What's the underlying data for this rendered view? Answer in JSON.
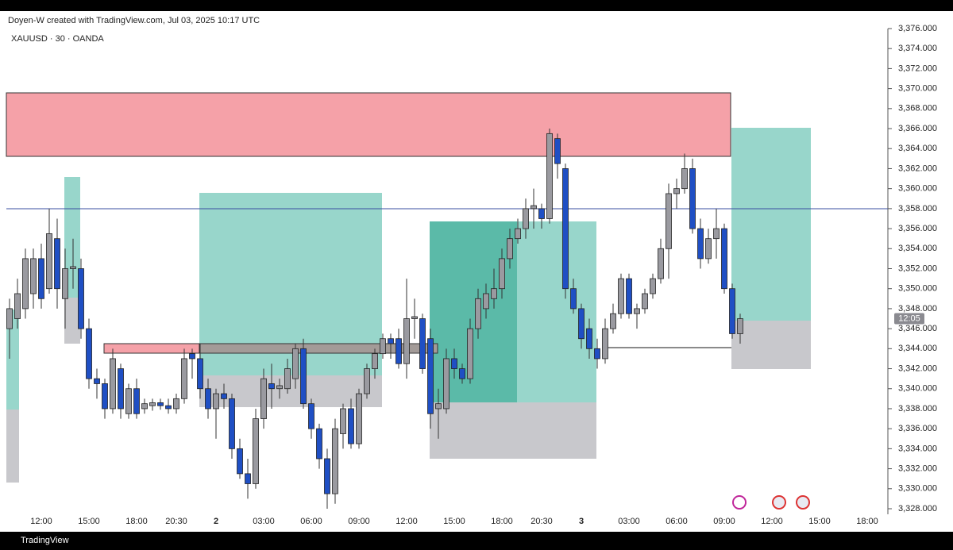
{
  "chart_data": {
    "type": "candlestick",
    "title": "Doyen-W created with TradingView.com, Jul 03, 2025 10:17 UTC",
    "subtitle": "XAUUSD · 30 · OANDA",
    "brand": "TradingView",
    "price_label": "12:05",
    "up_color": "#9a9aa0",
    "down_color": "#1f4fc4",
    "open": [
      3346,
      3347,
      3348,
      3349.5,
      3353,
      3350,
      3355,
      3349,
      3352,
      3352,
      3346,
      3341,
      3340.5,
      3338,
      3342,
      3337.5,
      3340,
      3338,
      3338.3,
      3338.6,
      3338.3,
      3338,
      3339,
      3343.5,
      3343,
      3340,
      3338,
      3339.5,
      3339,
      3334,
      3331.5,
      3330.5,
      3337,
      3340.5,
      3340,
      3340,
      3341,
      3344,
      3338.5,
      3336,
      3333,
      3329.5,
      3335.5,
      3338,
      3334.5,
      3339.5,
      3342,
      3343.5,
      3345,
      3345,
      3342.5,
      3347,
      3347,
      3345,
      3338,
      3338,
      3343,
      3342,
      3341,
      3346,
      3348,
      3349,
      3350,
      3353,
      3355,
      3356,
      3358,
      3358,
      3357,
      3365,
      3362,
      3350,
      3348,
      3346,
      3344,
      3343,
      3346,
      3347.5,
      3351,
      3347.5,
      3348,
      3349.5,
      3351,
      3354,
      3359.5,
      3360,
      3362,
      3356,
      3353,
      3355,
      3356,
      3350,
      3345.5
    ],
    "high": [
      3349,
      3351,
      3354,
      3354,
      3354.5,
      3358,
      3357,
      3354,
      3355,
      3353,
      3347,
      3342,
      3341,
      3344,
      3342.5,
      3340.5,
      3341,
      3339,
      3339,
      3339,
      3339,
      3339.5,
      3344,
      3344,
      3344.5,
      3341,
      3340,
      3340.5,
      3339.5,
      3335,
      3333,
      3338,
      3342,
      3342.5,
      3341,
      3343,
      3344.5,
      3345,
      3339,
      3336.5,
      3334,
      3337,
      3338.5,
      3339,
      3340,
      3342.5,
      3344,
      3345.5,
      3345.5,
      3346,
      3351,
      3349,
      3347.5,
      3346,
      3340,
      3344,
      3344,
      3342.5,
      3347,
      3350,
      3350.5,
      3352,
      3354,
      3356,
      3357,
      3359,
      3360,
      3358.5,
      3366,
      3365.5,
      3362.5,
      3351,
      3348.5,
      3347,
      3345,
      3347,
      3348.5,
      3351.5,
      3351.5,
      3348.5,
      3350,
      3351.5,
      3355,
      3360.5,
      3361,
      3363.5,
      3363,
      3357,
      3356,
      3358,
      3356.5,
      3350.5,
      3347.5
    ],
    "low": [
      3343,
      3346,
      3347,
      3348,
      3348,
      3349.5,
      3348,
      3346,
      3350,
      3345,
      3340,
      3339,
      3337,
      3337.5,
      3337,
      3337,
      3337,
      3337.5,
      3337.8,
      3337.9,
      3337.5,
      3337.5,
      3338.5,
      3341,
      3339,
      3337,
      3335,
      3338,
      3333,
      3331,
      3329,
      3330,
      3336,
      3338,
      3339,
      3339.5,
      3340,
      3338,
      3335,
      3332,
      3328,
      3328.5,
      3334,
      3334,
      3334,
      3339,
      3341,
      3343,
      3343,
      3342,
      3341,
      3345,
      3341.5,
      3336,
      3335,
      3337.5,
      3341,
      3340.5,
      3340.5,
      3345,
      3347,
      3348,
      3349,
      3352,
      3354.5,
      3355,
      3356,
      3356,
      3356.5,
      3361,
      3349,
      3347.5,
      3344,
      3343,
      3342,
      3342.5,
      3345.5,
      3347,
      3347,
      3346,
      3347.5,
      3349,
      3350.5,
      3351,
      3358,
      3359.5,
      3355.5,
      3352,
      3352.5,
      3353,
      3349.5,
      3345,
      3344.5
    ],
    "close": [
      3348,
      3349.5,
      3353,
      3353,
      3349,
      3355.5,
      3350,
      3352,
      3352.2,
      3346,
      3341,
      3340.5,
      3338,
      3343,
      3338,
      3340,
      3337.5,
      3338.5,
      3338.6,
      3338.3,
      3338,
      3339,
      3343,
      3343,
      3340,
      3338,
      3339.5,
      3339,
      3334,
      3331.5,
      3330.5,
      3337,
      3341,
      3340,
      3340.3,
      3342,
      3344,
      3338.5,
      3336,
      3333,
      3329.5,
      3336,
      3338,
      3334.5,
      3339.5,
      3342,
      3343.5,
      3345,
      3344.5,
      3342.5,
      3347,
      3347.2,
      3342,
      3337.5,
      3338.5,
      3343,
      3342,
      3341,
      3346,
      3349,
      3349.5,
      3350,
      3353,
      3355,
      3356,
      3358,
      3358.3,
      3357,
      3365.5,
      3362.5,
      3350,
      3348,
      3345,
      3344,
      3343,
      3346,
      3347.5,
      3351,
      3347.5,
      3348,
      3349.5,
      3351,
      3354,
      3359.5,
      3360,
      3362,
      3356,
      3353,
      3355,
      3356,
      3350,
      3345.5,
      3347
    ],
    "xlim": [
      -0.4,
      110.2
    ],
    "xticks": [
      {
        "value": 4,
        "label": "12:00"
      },
      {
        "value": 10,
        "label": "15:00"
      },
      {
        "value": 16,
        "label": "18:00"
      },
      {
        "value": 21,
        "label": "20:30"
      },
      {
        "value": 26,
        "label": "2"
      },
      {
        "value": 32,
        "label": "03:00"
      },
      {
        "value": 38,
        "label": "06:00"
      },
      {
        "value": 44,
        "label": "09:00"
      },
      {
        "value": 50,
        "label": "12:00"
      },
      {
        "value": 56,
        "label": "15:00"
      },
      {
        "value": 62,
        "label": "18:00"
      },
      {
        "value": 67,
        "label": "20:30"
      },
      {
        "value": 72,
        "label": "3"
      },
      {
        "value": 78,
        "label": "03:00"
      },
      {
        "value": 84,
        "label": "06:00"
      },
      {
        "value": 90,
        "label": "09:00"
      },
      {
        "value": 96,
        "label": "12:00"
      },
      {
        "value": 102,
        "label": "15:00"
      },
      {
        "value": 108,
        "label": "18:00"
      }
    ],
    "ylim": [
      3328,
      3376
    ],
    "yticks": [
      {
        "value": 3328,
        "label": "3,328.000"
      },
      {
        "value": 3330,
        "label": "3,330.000"
      },
      {
        "value": 3332,
        "label": "3,332.000"
      },
      {
        "value": 3334,
        "label": "3,334.000"
      },
      {
        "value": 3336,
        "label": "3,336.000"
      },
      {
        "value": 3338,
        "label": "3,338.000"
      },
      {
        "value": 3340,
        "label": "3,340.000"
      },
      {
        "value": 3342,
        "label": "3,342.000"
      },
      {
        "value": 3344,
        "label": "3,344.000"
      },
      {
        "value": 3346,
        "label": "3,346.000"
      },
      {
        "value": 3348,
        "label": "3,348.000"
      },
      {
        "value": 3350,
        "label": "3,350.000"
      },
      {
        "value": 3352,
        "label": "3,352.000"
      },
      {
        "value": 3354,
        "label": "3,354.000"
      },
      {
        "value": 3356,
        "label": "3,356.000"
      },
      {
        "value": 3358,
        "label": "3,358.000"
      },
      {
        "value": 3360,
        "label": "3,360.000"
      },
      {
        "value": 3362,
        "label": "3,362.000"
      },
      {
        "value": 3364,
        "label": "3,364.000"
      },
      {
        "value": 3366,
        "label": "3,366.000"
      },
      {
        "value": 3368,
        "label": "3,368.000"
      },
      {
        "value": 3370,
        "label": "3,370.000"
      },
      {
        "value": 3372,
        "label": "3,372.000"
      },
      {
        "value": 3374,
        "label": "3,374.000"
      },
      {
        "value": 3376,
        "label": "3,376.000"
      }
    ]
  }
}
